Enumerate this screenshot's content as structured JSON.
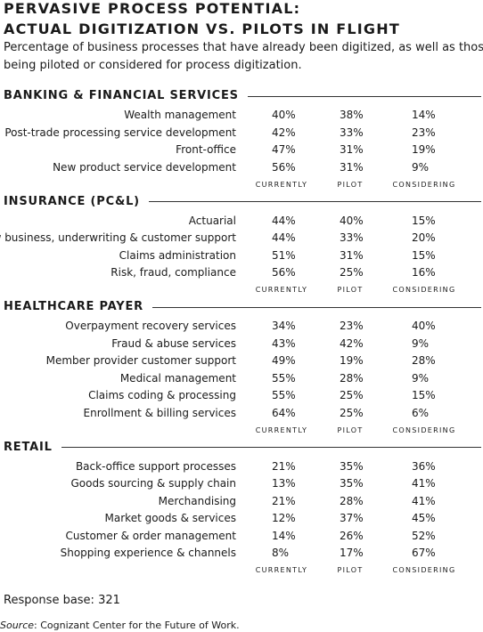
{
  "header": {
    "title_line1": "PERVASIVE PROCESS POTENTIAL:",
    "title_line2": "ACTUAL DIGITIZATION VS. PILOTS IN FLIGHT",
    "subtitle_line1": "Percentage of business processes that have already been digitized, as well as those",
    "subtitle_line2": "being piloted or considered for process digitization."
  },
  "sections": [
    {
      "title": "BANKING & FINANCIAL SERVICES",
      "columns": [
        "CURRENTLY",
        "PILOT",
        "CONSIDERING"
      ],
      "rows": [
        [
          "Wealth management",
          "40%",
          "38%",
          "14%"
        ],
        [
          "Post-trade processing service development",
          "42%",
          "33%",
          "23%"
        ],
        [
          "Front-office",
          "47%",
          "31%",
          "19%"
        ],
        [
          "New product service development",
          "56%",
          "31%",
          "9%"
        ]
      ]
    },
    {
      "title": "INSURANCE (PC&L)",
      "columns": [
        "CURRENTLY",
        "PILOT",
        "CONSIDERING"
      ],
      "rows": [
        [
          "Actuarial",
          "44%",
          "40%",
          "15%"
        ],
        [
          "New business, underwriting & customer support",
          "44%",
          "33%",
          "20%"
        ],
        [
          "Claims administration",
          "51%",
          "31%",
          "15%"
        ],
        [
          "Risk, fraud, compliance",
          "56%",
          "25%",
          "16%"
        ]
      ]
    },
    {
      "title": "HEALTHCARE PAYER",
      "columns": [
        "CURRENTLY",
        "PILOT",
        "CONSIDERING"
      ],
      "rows": [
        [
          "Overpayment recovery services",
          "34%",
          "23%",
          "40%"
        ],
        [
          "Fraud & abuse services",
          "43%",
          "42%",
          "9%"
        ],
        [
          "Member provider customer support",
          "49%",
          "19%",
          "28%"
        ],
        [
          "Medical management",
          "55%",
          "28%",
          "9%"
        ],
        [
          "Claims coding & processing",
          "55%",
          "25%",
          "15%"
        ],
        [
          "Enrollment & billing services",
          "64%",
          "25%",
          "6%"
        ]
      ]
    },
    {
      "title": "RETAIL",
      "columns": [
        "CURRENTLY",
        "PILOT",
        "CONSIDERING"
      ],
      "rows": [
        [
          "Back-office support processes",
          "21%",
          "35%",
          "36%"
        ],
        [
          "Goods sourcing & supply chain",
          "13%",
          "35%",
          "41%"
        ],
        [
          "Merchandising",
          "21%",
          "28%",
          "41%"
        ],
        [
          "Market goods & services",
          "12%",
          "37%",
          "45%"
        ],
        [
          "Customer & order management",
          "14%",
          "26%",
          "52%"
        ],
        [
          "Shopping experience & channels",
          "8%",
          "17%",
          "67%"
        ]
      ]
    }
  ],
  "footer": {
    "response_base": "Response base: 321",
    "source_label": "Source",
    "source_text": ": Cognizant Center for the Future of Work."
  }
}
